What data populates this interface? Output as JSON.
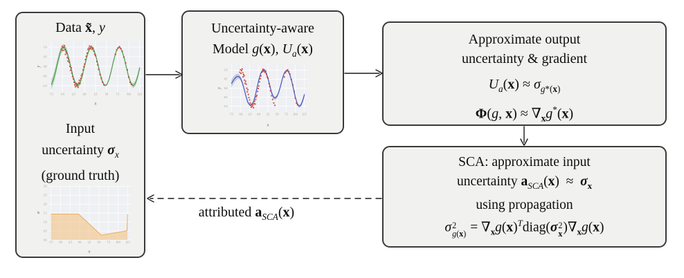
{
  "colors": {
    "background": "#ffffff",
    "box_fill": "#f1f1ef",
    "box_border": "#3a3a3a",
    "text": "#0d0d0d",
    "plot_background": "#eff0f3",
    "gridline": "#ffffff",
    "data_curve_green": "#55a055",
    "model_curve_blue": "#4a5ec8",
    "marker_red": "#c9392c",
    "sigma_area_orange": "#eba74f"
  },
  "boxes": {
    "data": {
      "title_html": "Data <b>x̃</b>, <i>y</i>",
      "caption_lines_html": [
        "Input",
        "uncertainty <b><i>σ</i></b><sub><i>x</i></sub>",
        "(ground truth)"
      ]
    },
    "model": {
      "title_lines_html": [
        "Uncertainty-aware",
        "Model <i>g</i>(<b>x</b>), <i>U</i><sub><i>a</i></sub>(<b>x</b>)"
      ]
    },
    "approx": {
      "title_lines_html": [
        "Approximate output",
        "uncertainty & gradient"
      ],
      "equations_html": [
        "<i>U</i><sub><i>a</i></sub>(<b>x</b>) ≈ <i>σ</i><sub><i>g</i>*(<b>x</b>)</sub>",
        "<b>Φ</b>(<i>g</i>, <b>x</b>) ≈ ∇<sub><b>x</b></sub><i>g</i><sup>*</sup>(<b>x</b>)"
      ]
    },
    "sca": {
      "lines_html": [
        "SCA: approximate input",
        "uncertainty <b>a</b><sub><i>SCA</i></sub>(<b>x</b>)  ≈  <b><i>σ</i></b><sub><b>x</b></sub>",
        "using propagation",
        "<i>σ</i><span class=\"supsub\"><span>2</span><span><i>g</i>(<b>x</b>)</span></span> = ∇<sub><b>x</b></sub><i>g</i>(<b>x</b>)<sup><i>T</i></sup>diag(<b><i>σ</i></b><span class=\"supsub\"><span>2</span><span><b>x</b></span></span>)∇<sub><b>x</b></sub><i>g</i>(<b>x</b>)"
      ]
    }
  },
  "arrows": {
    "data_to_model": {
      "style": "solid",
      "direction": "right"
    },
    "model_to_approx": {
      "style": "solid",
      "direction": "right"
    },
    "approx_to_sca": {
      "style": "solid",
      "direction": "down"
    },
    "sca_to_data": {
      "style": "dashed",
      "direction": "left",
      "label_html": "attributed <b>a</b><sub><i>SCA</i></sub>(<b>x</b>)"
    }
  },
  "chart_data": [
    {
      "name": "data-plot",
      "type": "line",
      "title": "",
      "xlabel": "x",
      "ylabel": "y",
      "xlim": [
        -8.3,
        13.3
      ],
      "ylim": [
        -1.32,
        1.32
      ],
      "xticks": [
        -7.5,
        -5.0,
        -2.5,
        0.0,
        2.5,
        5.0,
        7.5,
        10.0,
        12.5
      ],
      "yticks": [
        -1.0,
        -0.5,
        0.0,
        0.5,
        1.0
      ],
      "bg": "#eff0f3",
      "curve_color": "#55a055",
      "band_fill": "rgba(100,165,100,0.38)",
      "marker_color": "rgba(201,57,44,0.85)",
      "curve": [
        [
          -7.5,
          -0.94
        ],
        [
          -7,
          -0.66
        ],
        [
          -6.5,
          -0.22
        ],
        [
          -6,
          0.28
        ],
        [
          -5.5,
          0.71
        ],
        [
          -5,
          0.96
        ],
        [
          -4.5,
          0.98
        ],
        [
          -4,
          0.76
        ],
        [
          -3.5,
          0.35
        ],
        [
          -3,
          -0.14
        ],
        [
          -2.5,
          -0.6
        ],
        [
          -2,
          -0.91
        ],
        [
          -1.5,
          -1
        ],
        [
          -1,
          -0.84
        ],
        [
          -0.5,
          -0.48
        ],
        [
          0,
          0
        ],
        [
          0.5,
          0.48
        ],
        [
          1,
          0.84
        ],
        [
          1.5,
          1
        ],
        [
          2,
          0.91
        ],
        [
          2.5,
          0.6
        ],
        [
          3,
          0.14
        ],
        [
          3.5,
          -0.35
        ],
        [
          4,
          -0.76
        ],
        [
          4.5,
          -0.98
        ],
        [
          5,
          -0.96
        ],
        [
          5.5,
          -0.71
        ],
        [
          6,
          -0.28
        ],
        [
          6.5,
          0.22
        ],
        [
          7,
          0.66
        ],
        [
          7.5,
          0.94
        ],
        [
          8,
          0.99
        ],
        [
          8.5,
          0.8
        ],
        [
          9,
          0.41
        ],
        [
          9.5,
          -0.08
        ],
        [
          10,
          -0.54
        ],
        [
          10.5,
          -0.88
        ],
        [
          11,
          -1
        ],
        [
          11.5,
          -0.88
        ],
        [
          12,
          -0.54
        ],
        [
          12.5,
          -0.07
        ]
      ],
      "band_hw": [
        0.26,
        0.25,
        0.24,
        0.22,
        0.2,
        0.18,
        0.16,
        0.15,
        0.14,
        0.13,
        0.12,
        0.12,
        0.12,
        0.12,
        0.12,
        0.11,
        0.11,
        0.1,
        0.1,
        0.1,
        0.09,
        0.09,
        0.08,
        0.08,
        0.06,
        0.05,
        0.05,
        0.04,
        0.04,
        0.04,
        0.04,
        0.05,
        0.06,
        0.07,
        0.08,
        0.09,
        0.1,
        0.12,
        0.13,
        0.14,
        0.15
      ],
      "points": [
        [
          -5.2,
          0.88
        ],
        [
          -5,
          1.02
        ],
        [
          -4.9,
          0.82
        ],
        [
          -4.7,
          0.97
        ],
        [
          -4.55,
          1.06
        ],
        [
          -4.4,
          0.85
        ],
        [
          -4.3,
          0.62
        ],
        [
          -4.15,
          0.75
        ],
        [
          -4,
          0.68
        ],
        [
          -3.9,
          0.45
        ],
        [
          -3.75,
          0.27
        ],
        [
          -3.6,
          0.38
        ],
        [
          -3.45,
          0.22
        ],
        [
          -3.3,
          0
        ],
        [
          -3.15,
          -0.2
        ],
        [
          -3,
          -0.08
        ],
        [
          -2.85,
          -0.35
        ],
        [
          -2.7,
          -0.52
        ],
        [
          -2.5,
          -0.65
        ],
        [
          -2.35,
          -0.82
        ],
        [
          -2.2,
          -0.95
        ],
        [
          -2.05,
          -1.05
        ],
        [
          -1.9,
          -0.88
        ],
        [
          -1.75,
          -1
        ],
        [
          -1.6,
          -0.92
        ],
        [
          -1.45,
          -1.08
        ],
        [
          -1.3,
          -0.85
        ],
        [
          -1.15,
          -0.72
        ],
        [
          -1,
          -0.88
        ],
        [
          -0.85,
          -0.62
        ],
        [
          -0.7,
          -0.48
        ],
        [
          -0.55,
          -0.4
        ],
        [
          -0.3,
          -0.18
        ],
        [
          -0.15,
          -0.02
        ],
        [
          0,
          0.12
        ],
        [
          0.2,
          0.35
        ],
        [
          0.4,
          0.52
        ],
        [
          0.6,
          0.68
        ],
        [
          0.8,
          0.88
        ],
        [
          1,
          0.95
        ],
        [
          1.15,
          1.05
        ],
        [
          1.3,
          0.92
        ],
        [
          1.5,
          1.02
        ],
        [
          1.7,
          0.88
        ],
        [
          1.9,
          0.95
        ],
        [
          2.1,
          0.78
        ],
        [
          2.3,
          0.62
        ],
        [
          2.5,
          0.55
        ],
        [
          2.8,
          0.25
        ],
        [
          3,
          0.08
        ],
        [
          3.2,
          -0.15
        ],
        [
          3.5,
          -0.42
        ],
        [
          3.8,
          -0.62
        ],
        [
          4.1,
          -0.82
        ],
        [
          4.4,
          -0.95
        ],
        [
          7,
          0.62
        ],
        [
          7.3,
          0.85
        ],
        [
          7.6,
          0.95
        ],
        [
          7.9,
          1.02
        ],
        [
          8.2,
          0.92
        ],
        [
          8.5,
          0.78
        ],
        [
          8.9,
          0.48
        ],
        [
          9.3,
          0.18
        ],
        [
          9.7,
          -0.18
        ],
        [
          10,
          -0.55
        ],
        [
          10.3,
          -0.82
        ],
        [
          10.6,
          -0.92
        ]
      ]
    },
    {
      "name": "model-plot",
      "type": "line",
      "title": "",
      "xlabel": "x",
      "ylabel": "y",
      "xlim": [
        -8.3,
        13.3
      ],
      "ylim": [
        -1.32,
        1.32
      ],
      "xticks": [
        -7.5,
        -5.0,
        -2.5,
        0.0,
        2.5,
        5.0,
        7.5,
        10.0,
        12.5
      ],
      "yticks": [
        -1.0,
        -0.5,
        0.0,
        0.5,
        1.0
      ],
      "bg": "#eff0f3",
      "curve_color": "#4a5ec8",
      "band_fill": "rgba(110,120,170,0.32)",
      "marker_color": "rgba(201,57,44,0.85)",
      "curve": [
        [
          -7.5,
          0.25
        ],
        [
          -7,
          0.42
        ],
        [
          -6.5,
          0.55
        ],
        [
          -6,
          0.64
        ],
        [
          -5.5,
          0.65
        ],
        [
          -5,
          0.55
        ],
        [
          -4.5,
          0.3
        ],
        [
          -4,
          -0.05
        ],
        [
          -3.5,
          -0.45
        ],
        [
          -3,
          -0.78
        ],
        [
          -2.5,
          -0.93
        ],
        [
          -2,
          -0.92
        ],
        [
          -1.5,
          -0.78
        ],
        [
          -1,
          -0.45
        ],
        [
          -0.5,
          0
        ],
        [
          0,
          0.45
        ],
        [
          0.5,
          0.8
        ],
        [
          1,
          0.98
        ],
        [
          1.5,
          1
        ],
        [
          2,
          0.85
        ],
        [
          2.5,
          0.55
        ],
        [
          3,
          0.15
        ],
        [
          3.5,
          -0.25
        ],
        [
          4,
          -0.5
        ],
        [
          4.5,
          -0.55
        ],
        [
          5,
          -0.45
        ],
        [
          5.5,
          -0.2
        ],
        [
          6,
          0.15
        ],
        [
          6.5,
          0.55
        ],
        [
          7,
          0.85
        ],
        [
          7.5,
          0.98
        ],
        [
          8,
          0.95
        ],
        [
          8.5,
          0.75
        ],
        [
          9,
          0.4
        ],
        [
          9.5,
          -0.05
        ],
        [
          10,
          -0.5
        ],
        [
          10.5,
          -0.85
        ],
        [
          11,
          -1
        ],
        [
          11.5,
          -0.95
        ],
        [
          12,
          -0.7
        ],
        [
          12.5,
          -0.35
        ]
      ],
      "band_hw": [
        0.22,
        0.2,
        0.18,
        0.16,
        0.14,
        0.12,
        0.1,
        0.08,
        0.07,
        0.06,
        0.06,
        0.06,
        0.06,
        0.06,
        0.06,
        0.05,
        0.05,
        0.05,
        0.05,
        0.06,
        0.06,
        0.08,
        0.09,
        0.1,
        0.1,
        0.09,
        0.08,
        0.07,
        0.05,
        0.05,
        0.05,
        0.05,
        0.06,
        0.06,
        0.07,
        0.08,
        0.08,
        0.09,
        0.1,
        0.12,
        0.14
      ],
      "points": [
        [
          -5.2,
          0.88
        ],
        [
          -5,
          1.02
        ],
        [
          -4.9,
          0.82
        ],
        [
          -4.7,
          0.97
        ],
        [
          -4.55,
          1.06
        ],
        [
          -4.4,
          0.85
        ],
        [
          -4.3,
          0.62
        ],
        [
          -4.15,
          0.75
        ],
        [
          -4,
          0.68
        ],
        [
          -3.9,
          0.45
        ],
        [
          -3.75,
          0.27
        ],
        [
          -3.6,
          0.38
        ],
        [
          -3.45,
          0.22
        ],
        [
          -3.3,
          0
        ],
        [
          -3.15,
          -0.2
        ],
        [
          -3,
          -0.08
        ],
        [
          -2.85,
          -0.35
        ],
        [
          -2.7,
          -0.52
        ],
        [
          -2.5,
          -0.65
        ],
        [
          -2.35,
          -0.82
        ],
        [
          -2.2,
          -0.95
        ],
        [
          -2.05,
          -1.05
        ],
        [
          -1.9,
          -0.88
        ],
        [
          -1.75,
          -1
        ],
        [
          -1.6,
          -0.92
        ],
        [
          -1.45,
          -1.08
        ],
        [
          -1.3,
          -0.85
        ],
        [
          -1.15,
          -0.72
        ],
        [
          -1,
          -0.88
        ],
        [
          -0.85,
          -0.62
        ],
        [
          -0.7,
          -0.48
        ],
        [
          -0.55,
          -0.4
        ],
        [
          -0.3,
          -0.18
        ],
        [
          -0.15,
          -0.02
        ],
        [
          0,
          0.12
        ],
        [
          0.2,
          0.35
        ],
        [
          0.4,
          0.52
        ],
        [
          0.6,
          0.68
        ],
        [
          0.8,
          0.88
        ],
        [
          1,
          0.95
        ],
        [
          1.15,
          1.05
        ],
        [
          1.3,
          0.92
        ],
        [
          1.5,
          1.02
        ],
        [
          1.7,
          0.88
        ],
        [
          1.9,
          0.95
        ],
        [
          2.1,
          0.78
        ],
        [
          2.3,
          0.62
        ],
        [
          2.5,
          0.55
        ],
        [
          2.8,
          0.25
        ],
        [
          3,
          0.08
        ],
        [
          3.2,
          -0.15
        ],
        [
          3.5,
          -0.42
        ],
        [
          3.8,
          -0.62
        ],
        [
          4.1,
          -0.82
        ],
        [
          4.4,
          -0.95
        ],
        [
          7,
          0.62
        ],
        [
          7.3,
          0.85
        ],
        [
          7.6,
          0.95
        ],
        [
          7.9,
          1.02
        ],
        [
          8.2,
          0.92
        ],
        [
          8.5,
          0.78
        ],
        [
          8.9,
          0.48
        ],
        [
          9.3,
          0.18
        ],
        [
          9.7,
          -0.18
        ],
        [
          10,
          -0.55
        ],
        [
          10.3,
          -0.82
        ],
        [
          10.6,
          -0.92
        ]
      ]
    },
    {
      "name": "sigma-plot",
      "type": "area",
      "title": "",
      "xlabel": "x",
      "ylabel": "σ",
      "xlim": [
        -8.3,
        13.3
      ],
      "ylim": [
        0,
        3.05
      ],
      "xticks": [
        -7.5,
        -5.0,
        -2.5,
        0.0,
        2.5,
        5.0,
        7.5,
        10.0,
        12.5
      ],
      "yticks": [
        0.0,
        0.5,
        1.0,
        1.5,
        2.0,
        2.5,
        3.0
      ],
      "bg": "#eff0f3",
      "area_fill": "rgba(243,186,110,0.5)",
      "line_color": "#eba74f",
      "area": [
        [
          -7.5,
          1.45
        ],
        [
          -0.3,
          1.45
        ],
        [
          5.6,
          0.27
        ],
        [
          11.9,
          0.5
        ],
        [
          12.3,
          0.55
        ],
        [
          12.45,
          1.43
        ],
        [
          12.5,
          1.4
        ]
      ]
    }
  ]
}
